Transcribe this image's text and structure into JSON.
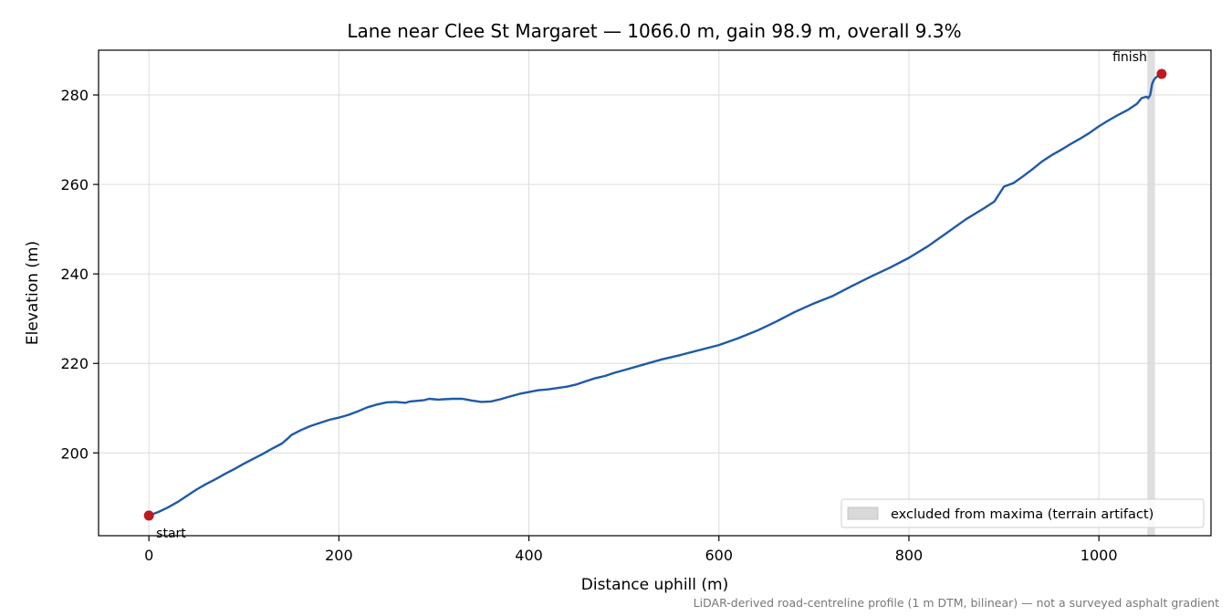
{
  "chart_data": {
    "type": "line",
    "title": "Lane near Clee St Margaret — 1066.0 m, gain 98.9 m, overall 9.3%",
    "xlabel": "Distance uphill (m)",
    "ylabel": "Elevation (m)",
    "xlim": [
      -53,
      1118
    ],
    "ylim": [
      181.5,
      290
    ],
    "xticks": [
      0,
      200,
      400,
      600,
      800,
      1000
    ],
    "yticks": [
      200,
      220,
      240,
      260,
      280
    ],
    "x_tick_labels": [
      "0",
      "200",
      "400",
      "600",
      "800",
      "1000"
    ],
    "y_tick_labels": [
      "200",
      "220",
      "240",
      "260",
      "280"
    ],
    "grid": true,
    "series": [
      {
        "color": "#1f5aa6",
        "x": [
          0,
          10,
          20,
          30,
          40,
          50,
          60,
          70,
          80,
          90,
          100,
          110,
          120,
          130,
          140,
          145,
          150,
          160,
          170,
          180,
          190,
          200,
          210,
          220,
          230,
          240,
          250,
          260,
          270,
          275,
          280,
          290,
          295,
          300,
          305,
          310,
          320,
          330,
          340,
          350,
          360,
          370,
          380,
          390,
          400,
          410,
          420,
          430,
          440,
          450,
          460,
          470,
          480,
          490,
          500,
          520,
          540,
          560,
          580,
          600,
          620,
          640,
          660,
          680,
          700,
          720,
          740,
          760,
          780,
          800,
          820,
          840,
          860,
          880,
          890,
          900,
          910,
          920,
          930,
          940,
          950,
          960,
          970,
          980,
          990,
          1000,
          1010,
          1020,
          1030,
          1040,
          1045,
          1050,
          1052,
          1054,
          1056,
          1058,
          1060,
          1063,
          1066
        ],
        "y": [
          186.0,
          186.8,
          187.8,
          189.0,
          190.4,
          191.8,
          193.0,
          194.1,
          195.3,
          196.4,
          197.6,
          198.7,
          199.8,
          201.0,
          202.1,
          203.0,
          204.0,
          205.1,
          206.0,
          206.7,
          207.4,
          207.9,
          208.5,
          209.3,
          210.2,
          210.8,
          211.3,
          211.4,
          211.2,
          211.5,
          211.6,
          211.8,
          212.1,
          212.0,
          211.9,
          212.0,
          212.1,
          212.1,
          211.7,
          211.4,
          211.5,
          212.0,
          212.6,
          213.2,
          213.6,
          214.0,
          214.2,
          214.5,
          214.8,
          215.3,
          216.0,
          216.7,
          217.2,
          217.9,
          218.5,
          219.7,
          220.9,
          221.9,
          223.0,
          224.1,
          225.6,
          227.3,
          229.3,
          231.5,
          233.4,
          235.1,
          237.3,
          239.4,
          241.4,
          243.6,
          246.2,
          249.2,
          252.2,
          254.8,
          256.2,
          259.5,
          260.3,
          261.8,
          263.4,
          265.1,
          266.5,
          267.7,
          269.0,
          270.2,
          271.5,
          273.0,
          274.3,
          275.5,
          276.6,
          278.0,
          279.3,
          279.6,
          279.3,
          280.0,
          282.5,
          283.4,
          283.9,
          284.3,
          284.7
        ]
      }
    ],
    "markers": [
      {
        "label": "start",
        "x": 0,
        "y": 186.0,
        "color": "#c0181f"
      },
      {
        "label": "finish",
        "x": 1066,
        "y": 284.7,
        "color": "#c0181f"
      }
    ],
    "excluded_band": {
      "x_start": 1051,
      "x_end": 1059,
      "color": "#d9d9d9"
    },
    "legend": {
      "position": "bottom-right",
      "label": "excluded from maxima (terrain artifact)"
    },
    "footnote": "LiDAR-derived road-centreline profile (1 m DTM, bilinear) — not a surveyed asphalt gradient"
  }
}
